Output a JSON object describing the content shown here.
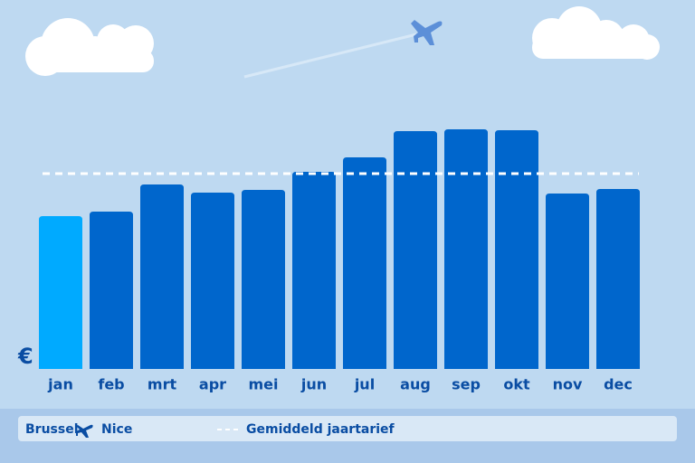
{
  "chart_data": {
    "type": "bar",
    "currency": "€",
    "categories": [
      "jan",
      "feb",
      "mrt",
      "apr",
      "mei",
      "jun",
      "jul",
      "aug",
      "sep",
      "okt",
      "nov",
      "dec"
    ],
    "values": [
      169,
      174,
      204,
      195,
      198,
      218,
      234,
      263,
      265,
      264,
      194,
      199
    ],
    "colors": [
      "#00aaff",
      "#0066cc",
      "#0066cc",
      "#0066cc",
      "#0066cc",
      "#0066cc",
      "#0066cc",
      "#0066cc",
      "#0066cc",
      "#0066cc",
      "#0066cc",
      "#0066cc"
    ],
    "average": {
      "name": "Gemiddeld jaartarief",
      "value": 216,
      "color": "#ffffff"
    },
    "origin": "Brussel",
    "destination": "Nice"
  }
}
